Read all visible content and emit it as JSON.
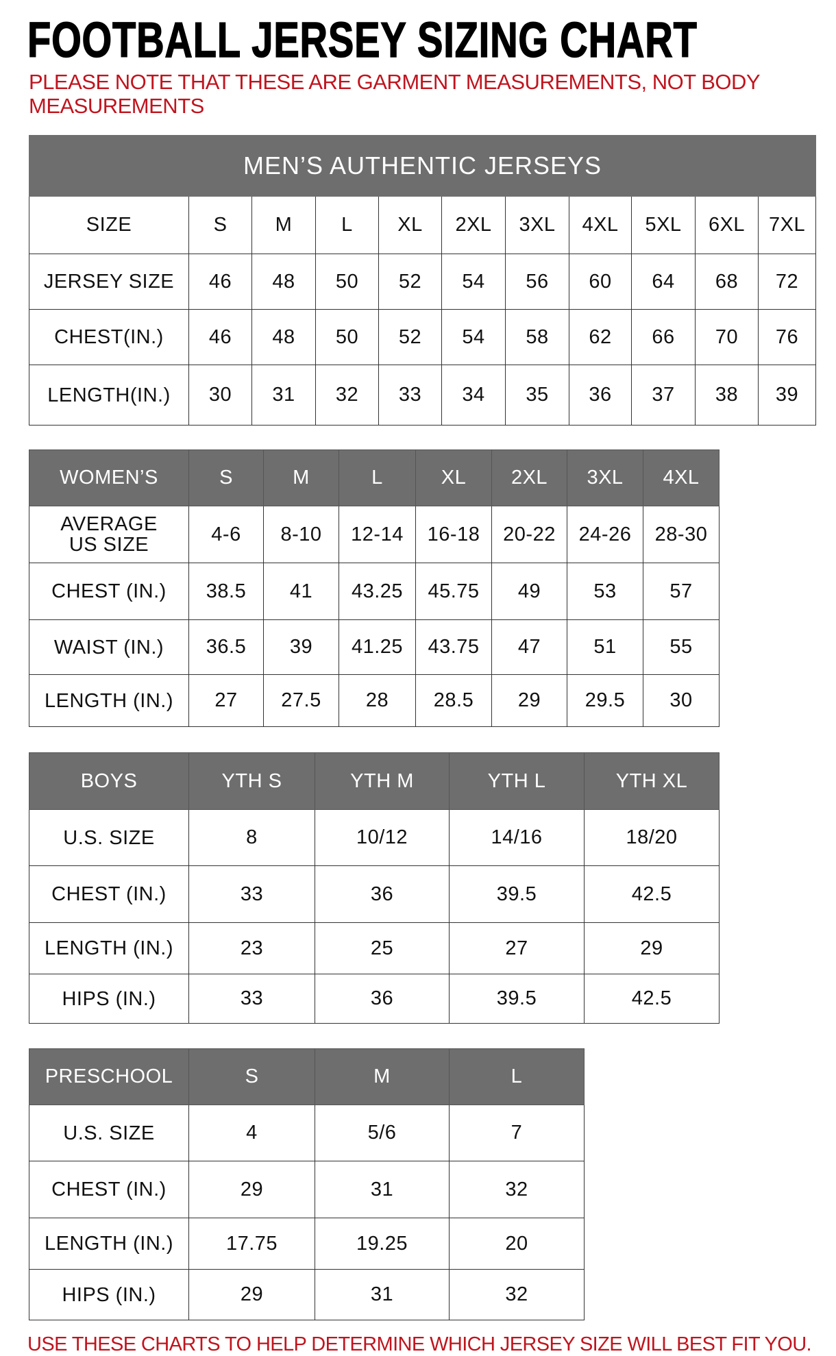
{
  "title": "FOOTBALL JERSEY SIZING CHART",
  "note": "PLEASE NOTE THAT THESE ARE GARMENT MEASUREMENTS, NOT BODY MEASUREMENTS",
  "footer": "USE THESE CHARTS TO HELP DETERMINE WHICH JERSEY SIZE WILL BEST FIT YOU.",
  "colors": {
    "header_bg": "#6e6e6e",
    "accent_red": "#c0141e"
  },
  "tables": [
    {
      "caption": "MEN’S AUTHENTIC JERSEYS",
      "header": [
        "SIZE",
        "S",
        "M",
        "L",
        "XL",
        "2XL",
        "3XL",
        "4XL",
        "5XL",
        "6XL",
        "7XL"
      ],
      "header_style": "plain",
      "rows": [
        [
          "JERSEY SIZE",
          "46",
          "48",
          "50",
          "52",
          "54",
          "56",
          "60",
          "64",
          "68",
          "72"
        ],
        [
          "CHEST(IN.)",
          "46",
          "48",
          "50",
          "52",
          "54",
          "58",
          "62",
          "66",
          "70",
          "76"
        ],
        [
          "LENGTH(IN.)",
          "30",
          "31",
          "32",
          "33",
          "34",
          "35",
          "36",
          "37",
          "38",
          "39"
        ]
      ]
    },
    {
      "header": [
        "WOMEN’S",
        "S",
        "M",
        "L",
        "XL",
        "2XL",
        "3XL",
        "4XL"
      ],
      "rows": [
        [
          "AVERAGE US SIZE",
          "4-6",
          "8-10",
          "12-14",
          "16-18",
          "20-22",
          "24-26",
          "28-30"
        ],
        [
          "CHEST (IN.)",
          "38.5",
          "41",
          "43.25",
          "45.75",
          "49",
          "53",
          "57"
        ],
        [
          "WAIST (IN.)",
          "36.5",
          "39",
          "41.25",
          "43.75",
          "47",
          "51",
          "55"
        ],
        [
          "LENGTH (IN.)",
          "27",
          "27.5",
          "28",
          "28.5",
          "29",
          "29.5",
          "30"
        ]
      ]
    },
    {
      "header": [
        "BOYS",
        "YTH S",
        "YTH M",
        "YTH L",
        "YTH XL"
      ],
      "rows": [
        [
          "U.S. SIZE",
          "8",
          "10/12",
          "14/16",
          "18/20"
        ],
        [
          "CHEST (IN.)",
          "33",
          "36",
          "39.5",
          "42.5"
        ],
        [
          "LENGTH (IN.)",
          "23",
          "25",
          "27",
          "29"
        ],
        [
          "HIPS (IN.)",
          "33",
          "36",
          "39.5",
          "42.5"
        ]
      ]
    },
    {
      "header": [
        "PRESCHOOL",
        "S",
        "M",
        "L"
      ],
      "rows": [
        [
          "U.S. SIZE",
          "4",
          "5/6",
          "7"
        ],
        [
          "CHEST (IN.)",
          "29",
          "31",
          "32"
        ],
        [
          "LENGTH (IN.)",
          "17.75",
          "19.25",
          "20"
        ],
        [
          "HIPS (IN.)",
          "29",
          "31",
          "32"
        ]
      ]
    }
  ]
}
